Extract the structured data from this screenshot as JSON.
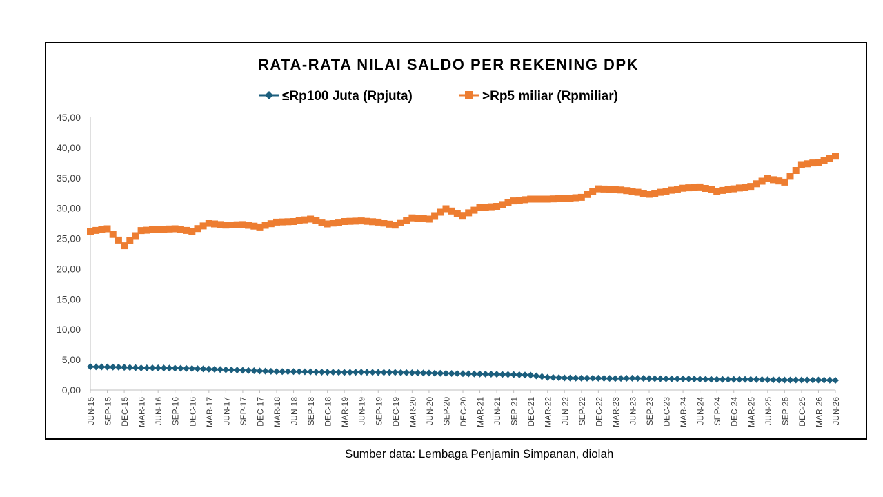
{
  "source_note": "Sumber data: Lembaga Penjamin Simpanan, diolah",
  "chart_data": {
    "type": "line",
    "title": "RATA-RATA NILAI SALDO PER REKENING DPK",
    "xlabel": "",
    "ylabel": "",
    "ylim": [
      0,
      45
    ],
    "yticks": [
      "0,00",
      "5,00",
      "10,00",
      "15,00",
      "20,00",
      "25,00",
      "30,00",
      "35,00",
      "40,00",
      "45,00"
    ],
    "x_labels": [
      "JUN-15",
      "SEP-15",
      "DEC-15",
      "MAR-16",
      "JUN-16",
      "SEP-16",
      "DEC-16",
      "MAR-17",
      "JUN-17",
      "SEP-17",
      "DEC-17",
      "MAR-18",
      "JUN-18",
      "SEP-18",
      "DEC-18",
      "MAR-19",
      "JUN-19",
      "SEP-19",
      "DEC-19",
      "MAR-20",
      "JUN-20",
      "SEP-20",
      "DEC-20",
      "MAR-21",
      "JUN-21",
      "SEP-21",
      "DEC-21",
      "MAR-22",
      "JUN-22",
      "SEP-22",
      "DEC-22",
      "MAR-23",
      "JUN-23",
      "SEP-23",
      "DEC-23",
      "MAR-24",
      "JUN-24",
      "SEP-24",
      "DEC-24",
      "MAR-25",
      "JUN-25",
      "SEP-25",
      "DEC-25",
      "MAR-26",
      "JUN-26"
    ],
    "grid": false,
    "legend_position": "top-center",
    "series": [
      {
        "name": "≤Rp100 Juta (Rpjuta)",
        "color": "#1b5e7d",
        "marker": "diamond",
        "quarterly_values": [
          3.85,
          3.8,
          3.75,
          3.65,
          3.65,
          3.6,
          3.55,
          3.45,
          3.35,
          3.25,
          3.15,
          3.05,
          3.05,
          3.0,
          2.95,
          2.9,
          2.95,
          2.9,
          2.9,
          2.85,
          2.8,
          2.75,
          2.7,
          2.65,
          2.6,
          2.55,
          2.45,
          2.1,
          2.0,
          1.95,
          1.95,
          1.9,
          1.95,
          1.9,
          1.85,
          1.85,
          1.8,
          1.75,
          1.75,
          1.75,
          1.7,
          1.65,
          1.65,
          1.65,
          1.6
        ]
      },
      {
        "name": ">Rp5 miliar (Rpmiliar)",
        "color": "#ed7d31",
        "marker": "square",
        "quarterly_values": [
          26.2,
          26.6,
          23.8,
          26.3,
          26.5,
          26.6,
          26.2,
          27.5,
          27.2,
          27.3,
          26.9,
          27.7,
          27.8,
          28.2,
          27.4,
          27.8,
          27.9,
          27.7,
          27.2,
          28.4,
          28.2,
          29.9,
          28.8,
          30.1,
          30.3,
          31.2,
          31.5,
          31.5,
          31.6,
          31.8,
          33.2,
          33.1,
          32.8,
          32.3,
          32.8,
          33.3,
          33.5,
          32.8,
          33.2,
          33.6,
          34.9,
          34.3,
          37.2,
          37.6,
          38.6
        ]
      }
    ]
  }
}
